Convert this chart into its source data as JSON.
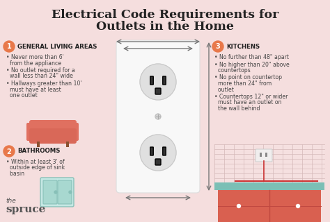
{
  "title_line1": "Electrical Code Requirements for",
  "title_line2": "Outlets in the Home",
  "bg_color": "#f5dede",
  "title_color": "#222222",
  "section1_title": "GENERAL LIVING AREAS",
  "section1_bullets": [
    "Never more than 6'",
    "from the appliance",
    "No outlet required for a",
    "wall less than 24\" wide",
    "Hallways greater than 10'",
    "must have at least",
    "one outlet"
  ],
  "section2_title": "BATHROOMS",
  "section2_bullets": [
    "Within at least 3' of",
    "outside edge of sink",
    "basin"
  ],
  "section3_title": "KITCHENS",
  "section3_bullets": [
    "No further than 48\" apart",
    "No higher than 20\" above",
    "countertops",
    "No point on countertop",
    "more than 24\" from",
    "outlet",
    "Countertops 12\" or wider",
    "must have an outlet on",
    "the wall behind"
  ],
  "outlet_plate_color": "#f8f8f8",
  "outlet_face_color": "#e0e0e0",
  "outlet_slot_color": "#333333",
  "outlet_ground_color": "#333333",
  "screw_color": "#d5d5d5",
  "num_circle_color": "#e8784a",
  "num_text_color": "#ffffff",
  "bullet_text_color": "#444444",
  "arrow_color": "#777777",
  "sofa_color": "#e07060",
  "sofa_leg_color": "#8B5030",
  "sink_color": "#a8d8d0",
  "sink_border_color": "#88c0b8",
  "kitchen_wall_color": "#f5dede",
  "kitchen_grid_color": "#d4b8b8",
  "kitchen_counter_color": "#7bbfb5",
  "kitchen_cabinet_color": "#d96050",
  "kitchen_outlet_color": "#f0eeee",
  "red_line_color": "#cc3333",
  "logo_color": "#555555"
}
